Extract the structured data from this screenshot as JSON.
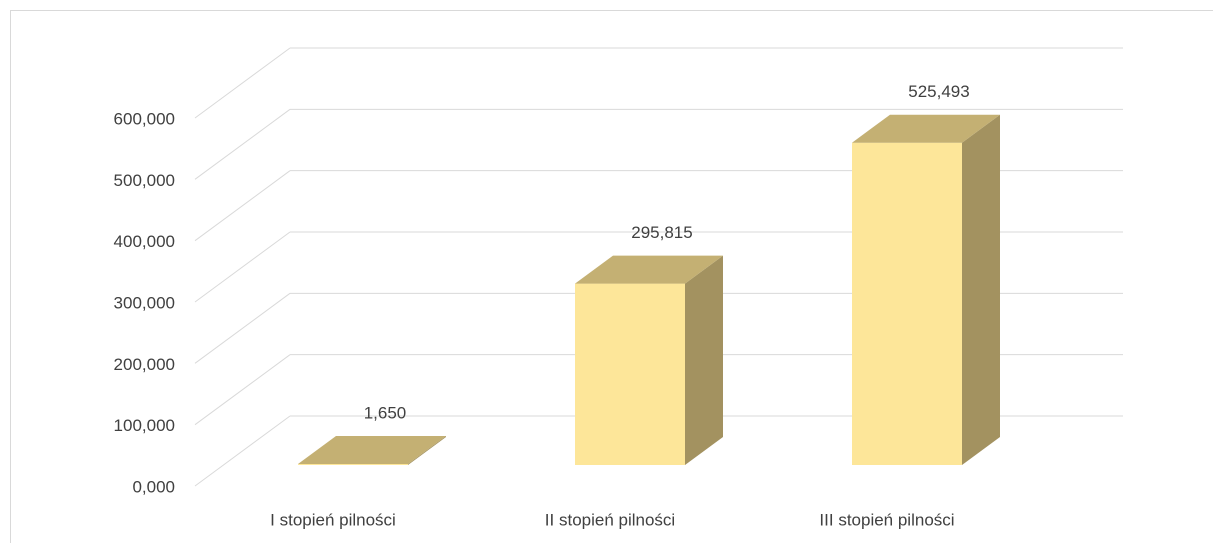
{
  "chart_data": {
    "type": "bar3d",
    "categories": [
      "I stopień pilności",
      "II stopień pilności",
      "III stopień pilności"
    ],
    "values": [
      1.65,
      295.815,
      525.493
    ],
    "value_labels": [
      "1,650",
      "295,815",
      "525,493"
    ],
    "ylim": [
      0,
      600
    ],
    "yticks": [
      {
        "value": 0,
        "label": "0,000"
      },
      {
        "value": 100,
        "label": "100,000"
      },
      {
        "value": 200,
        "label": "200,000"
      },
      {
        "value": 300,
        "label": "300,000"
      },
      {
        "value": 400,
        "label": "400,000"
      },
      {
        "value": 500,
        "label": "500,000"
      },
      {
        "value": 600,
        "label": "600,000"
      }
    ],
    "colors": {
      "front": "#fde699",
      "top": "#c4b073",
      "side": "#a39260"
    },
    "grid": true
  }
}
